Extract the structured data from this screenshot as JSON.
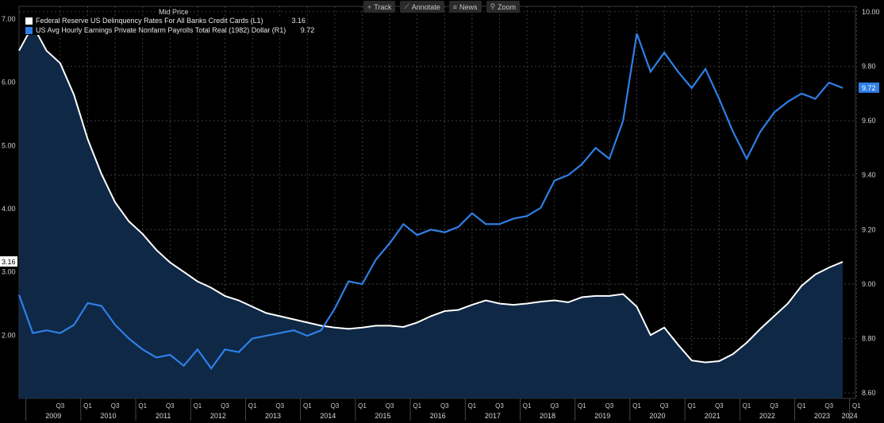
{
  "toolbar": {
    "track_label": "Track",
    "annotate_label": "Annotate",
    "news_label": "News",
    "zoom_label": "Zoom"
  },
  "header": {
    "mid_price": "Mid Price"
  },
  "colors": {
    "background": "#000000",
    "series_left": "#ffffff",
    "series_right": "#2f7fe6",
    "area_fill": "#0f2a4a",
    "grid": "#555555"
  },
  "chart_data": {
    "type": "line",
    "x_start": "2008 Q4",
    "x_frequency": "quarterly",
    "x_tick_labels": [
      {
        "quarter": "2009 Q3",
        "label": "Q3"
      },
      {
        "quarter": "2010 Q1",
        "label": "Q1"
      },
      {
        "quarter": "2010 Q3",
        "label": "Q3"
      },
      {
        "quarter": "2011 Q1",
        "label": "Q1"
      },
      {
        "quarter": "2011 Q3",
        "label": "Q3"
      },
      {
        "quarter": "2012 Q1",
        "label": "Q1"
      },
      {
        "quarter": "2012 Q3",
        "label": "Q3"
      },
      {
        "quarter": "2013 Q1",
        "label": "Q1"
      },
      {
        "quarter": "2013 Q3",
        "label": "Q3"
      },
      {
        "quarter": "2014 Q1",
        "label": "Q1"
      },
      {
        "quarter": "2014 Q3",
        "label": "Q3"
      },
      {
        "quarter": "2015 Q1",
        "label": "Q1"
      },
      {
        "quarter": "2015 Q3",
        "label": "Q3"
      },
      {
        "quarter": "2016 Q1",
        "label": "Q1"
      },
      {
        "quarter": "2016 Q3",
        "label": "Q3"
      },
      {
        "quarter": "2017 Q1",
        "label": "Q1"
      },
      {
        "quarter": "2017 Q3",
        "label": "Q3"
      },
      {
        "quarter": "2018 Q1",
        "label": "Q1"
      },
      {
        "quarter": "2018 Q3",
        "label": "Q3"
      },
      {
        "quarter": "2019 Q1",
        "label": "Q1"
      },
      {
        "quarter": "2019 Q3",
        "label": "Q3"
      },
      {
        "quarter": "2020 Q1",
        "label": "Q1"
      },
      {
        "quarter": "2020 Q3",
        "label": "Q3"
      },
      {
        "quarter": "2021 Q1",
        "label": "Q1"
      },
      {
        "quarter": "2021 Q3",
        "label": "Q3"
      },
      {
        "quarter": "2022 Q1",
        "label": "Q1"
      },
      {
        "quarter": "2022 Q3",
        "label": "Q3"
      },
      {
        "quarter": "2023 Q1",
        "label": "Q1"
      },
      {
        "quarter": "2023 Q3",
        "label": "Q3"
      },
      {
        "quarter": "2024 Q1",
        "label": "Q1"
      }
    ],
    "x_year_labels": [
      "2009",
      "2010",
      "2011",
      "2012",
      "2013",
      "2014",
      "2015",
      "2016",
      "2017",
      "2018",
      "2019",
      "2020",
      "2021",
      "2022",
      "2023",
      "2024"
    ],
    "y_left": {
      "ticks": [
        2.0,
        3.0,
        4.0,
        5.0,
        6.0,
        7.0
      ],
      "tick_labels": [
        "2.00",
        "3.00",
        "4.00",
        "5.00",
        "6.00",
        "7.00"
      ],
      "range": [
        1.0,
        7.2
      ]
    },
    "y_right": {
      "ticks": [
        8.6,
        8.8,
        9.0,
        9.2,
        9.4,
        9.6,
        9.8,
        10.0
      ],
      "tick_labels": [
        "8.60",
        "8.80",
        "9.00",
        "9.20",
        "9.40",
        "9.60",
        "9.80",
        "10.00"
      ],
      "range": [
        8.58,
        10.02
      ]
    },
    "grid": true,
    "legend_position": "top-left",
    "series": [
      {
        "name": "Federal Reserve US Delinquency Rates For All Banks Credit Cards  (L1)",
        "axis": "left",
        "last_value_label": "3.16",
        "color": "#ffffff",
        "values": [
          6.5,
          6.9,
          6.5,
          6.3,
          5.8,
          5.1,
          4.55,
          4.1,
          3.8,
          3.6,
          3.35,
          3.15,
          3.0,
          2.85,
          2.75,
          2.62,
          2.55,
          2.45,
          2.35,
          2.3,
          2.25,
          2.2,
          2.15,
          2.12,
          2.1,
          2.12,
          2.15,
          2.15,
          2.13,
          2.2,
          2.3,
          2.38,
          2.4,
          2.48,
          2.55,
          2.5,
          2.48,
          2.5,
          2.53,
          2.55,
          2.52,
          2.6,
          2.62,
          2.62,
          2.65,
          2.45,
          2.0,
          2.12,
          1.85,
          1.6,
          1.57,
          1.59,
          1.7,
          1.88,
          2.1,
          2.3,
          2.5,
          2.78,
          2.96,
          3.07,
          3.16
        ]
      },
      {
        "name": "US Avg Hourly Earnings Private Nonfarm Payrolls Total Real (1982) Dollar  (R1)",
        "axis": "right",
        "last_value_label": "9.72",
        "color": "#2f7fe6",
        "values": [
          8.96,
          8.82,
          8.83,
          8.82,
          8.85,
          8.93,
          8.92,
          8.85,
          8.8,
          8.76,
          8.73,
          8.74,
          8.7,
          8.76,
          8.69,
          8.76,
          8.75,
          8.8,
          8.81,
          8.82,
          8.83,
          8.81,
          8.83,
          8.91,
          9.01,
          9.0,
          9.09,
          9.15,
          9.22,
          9.18,
          9.2,
          9.19,
          9.21,
          9.26,
          9.22,
          9.22,
          9.24,
          9.25,
          9.28,
          9.38,
          9.4,
          9.44,
          9.5,
          9.46,
          9.6,
          9.92,
          9.78,
          9.85,
          9.78,
          9.72,
          9.79,
          9.68,
          9.56,
          9.46,
          9.56,
          9.63,
          9.67,
          9.7,
          9.68,
          9.74,
          9.72
        ]
      }
    ]
  }
}
